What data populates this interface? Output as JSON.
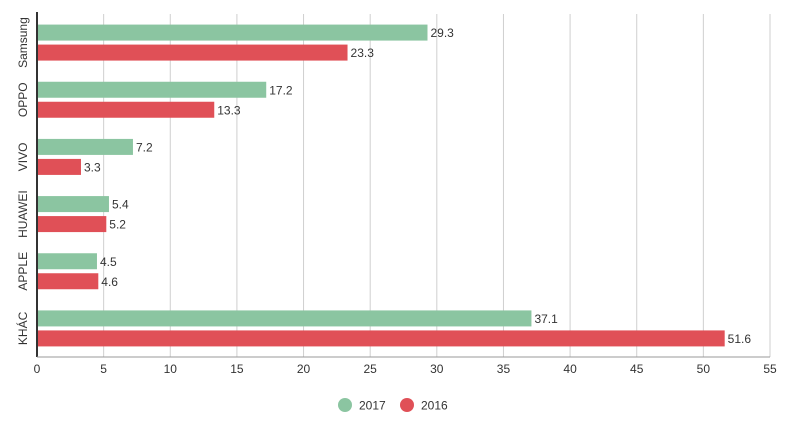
{
  "chart_data": {
    "type": "bar",
    "orientation": "horizontal",
    "title": "",
    "xlabel": "",
    "ylabel": "",
    "xlim": [
      0,
      55
    ],
    "x_ticks": [
      0,
      5,
      10,
      15,
      20,
      25,
      30,
      35,
      40,
      45,
      50,
      55
    ],
    "grid": true,
    "legend_position": "bottom-center",
    "categories": [
      "Samsung",
      "OPPO",
      "VIVO",
      "HUAWEI",
      "APPLE",
      "KHÁC"
    ],
    "series": [
      {
        "name": "2017",
        "color": "#8bc5a1",
        "values": [
          29.3,
          17.2,
          7.2,
          5.4,
          4.5,
          37.1
        ]
      },
      {
        "name": "2016",
        "color": "#e05057",
        "values": [
          23.3,
          13.3,
          3.3,
          5.2,
          4.6,
          51.6
        ]
      }
    ]
  }
}
